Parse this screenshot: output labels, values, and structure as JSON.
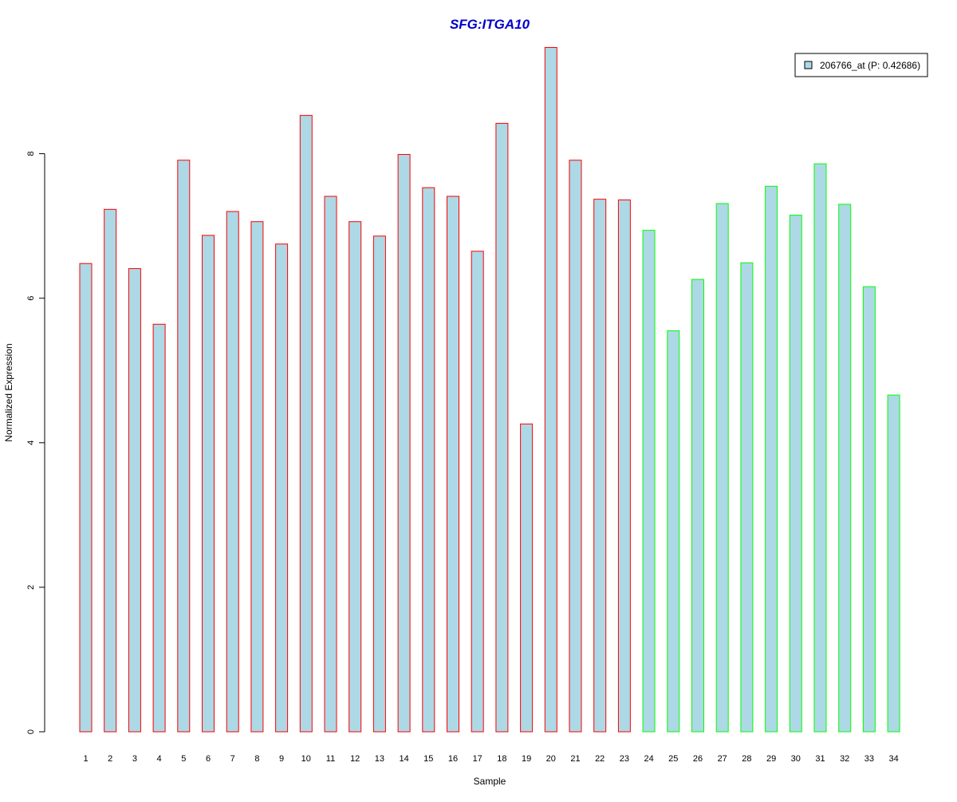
{
  "chart_data": {
    "type": "bar",
    "title": "SFG:ITGA10",
    "xlabel": "Sample",
    "ylabel": "Normalized Expression",
    "categories": [
      "1",
      "2",
      "3",
      "4",
      "5",
      "6",
      "7",
      "8",
      "9",
      "10",
      "11",
      "12",
      "13",
      "14",
      "15",
      "16",
      "17",
      "18",
      "19",
      "20",
      "21",
      "22",
      "23",
      "24",
      "25",
      "26",
      "27",
      "28",
      "29",
      "30",
      "31",
      "32",
      "33",
      "34"
    ],
    "series": [
      {
        "name": "206766_at (P: 0.42686)",
        "values": [
          6.48,
          7.23,
          6.41,
          5.64,
          7.91,
          6.87,
          7.2,
          7.06,
          6.75,
          8.53,
          7.41,
          7.06,
          6.86,
          7.99,
          7.53,
          7.41,
          6.65,
          8.42,
          4.26,
          9.47,
          7.91,
          7.37,
          7.36,
          6.94,
          5.55,
          6.26,
          7.31,
          6.49,
          7.55,
          7.15,
          7.86,
          7.3,
          6.16,
          4.66
        ]
      }
    ],
    "group_of_sample": [
      "red",
      "red",
      "red",
      "red",
      "red",
      "red",
      "red",
      "red",
      "red",
      "red",
      "red",
      "red",
      "red",
      "red",
      "red",
      "red",
      "red",
      "red",
      "red",
      "red",
      "red",
      "red",
      "red",
      "green",
      "green",
      "green",
      "green",
      "green",
      "green",
      "green",
      "green",
      "green",
      "green",
      "green"
    ],
    "y_ticks": [
      0,
      2,
      4,
      6,
      8
    ],
    "ylim": [
      0,
      9.5
    ],
    "grid": false,
    "legend_position": "top-right",
    "colors": {
      "bar_fill": "#add8e6",
      "border_red": "#ff0000",
      "border_green": "#00ff00",
      "title": "#0000cd",
      "axis": "#000000"
    }
  }
}
